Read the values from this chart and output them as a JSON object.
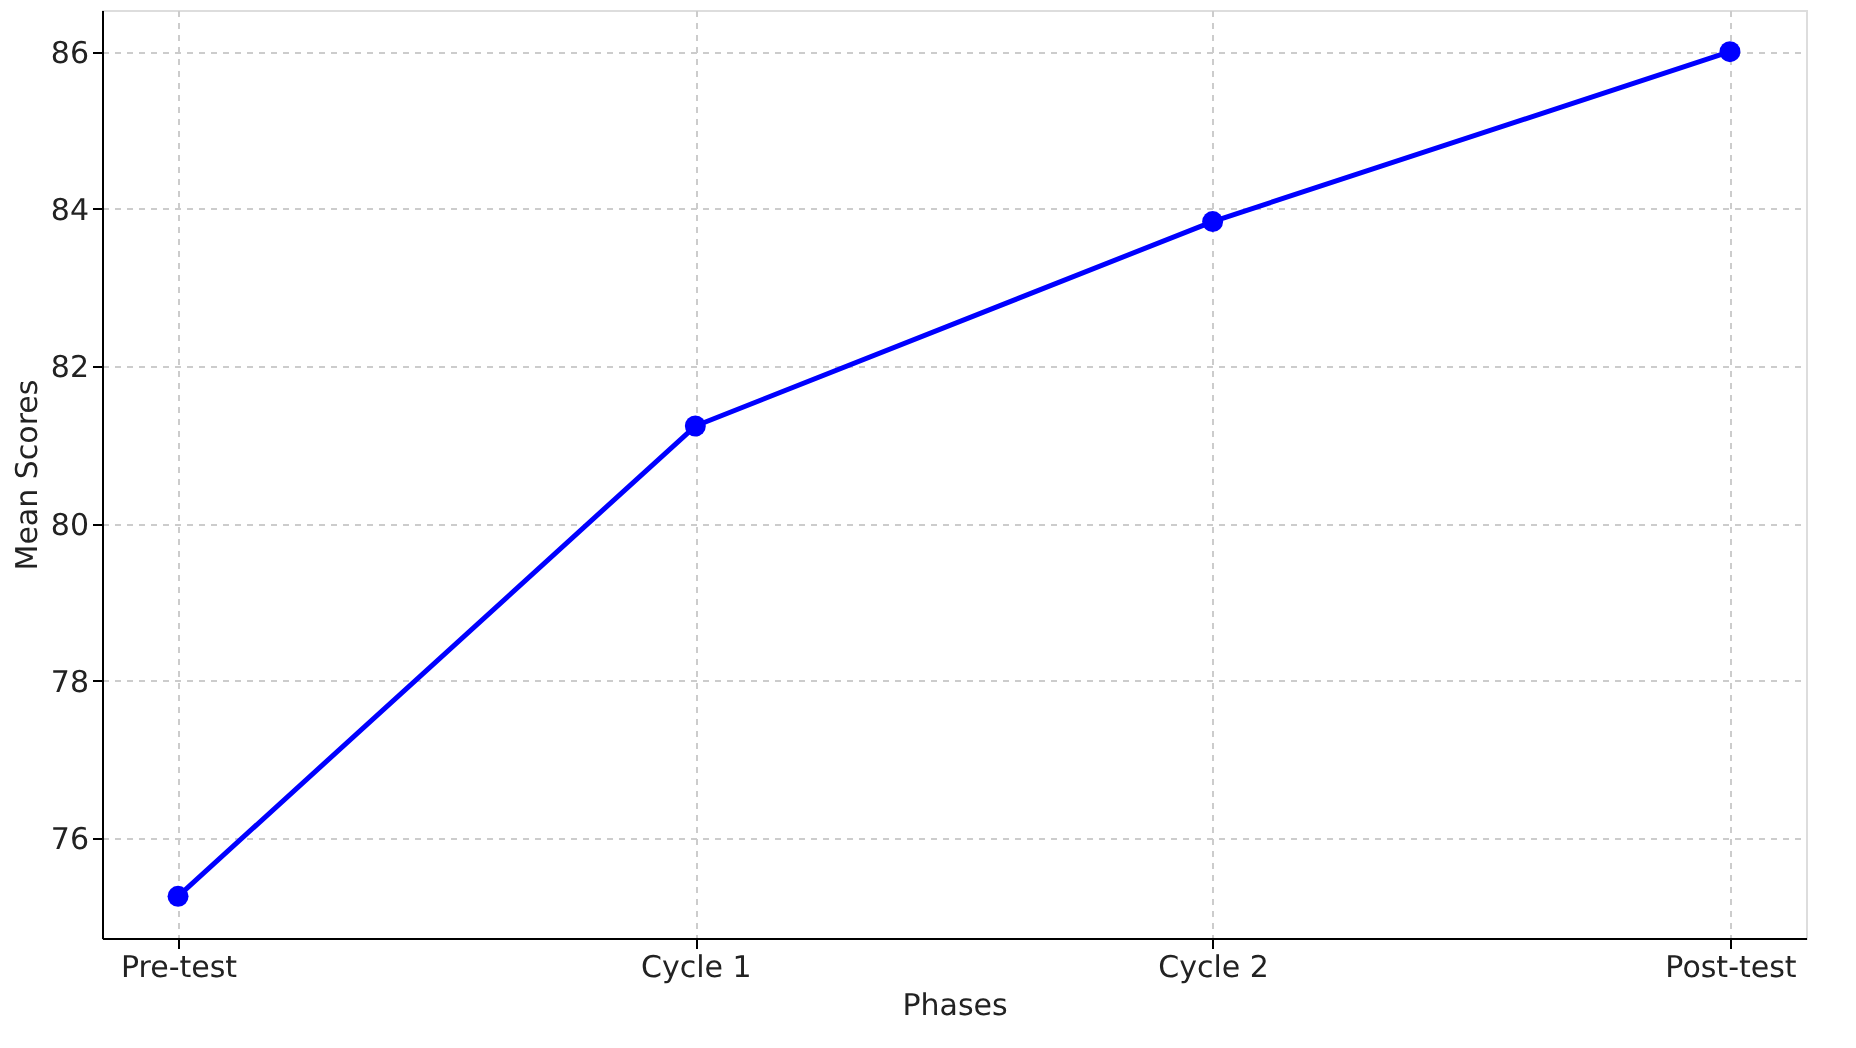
{
  "chart_data": {
    "type": "line",
    "xlabel": "Phases",
    "ylabel": "Mean Scores",
    "categories": [
      "Pre-test",
      "Cycle 1",
      "Cycle 2",
      "Post-test"
    ],
    "series": [
      {
        "color": "#0000ff",
        "values": [
          75.26,
          81.24,
          83.84,
          86.0
        ]
      }
    ],
    "ylim": [
      74.73,
      86.53
    ],
    "yticks": [
      76,
      78,
      80,
      82,
      84,
      86
    ],
    "grid": true,
    "marker": "circle",
    "line_style": "solid"
  }
}
